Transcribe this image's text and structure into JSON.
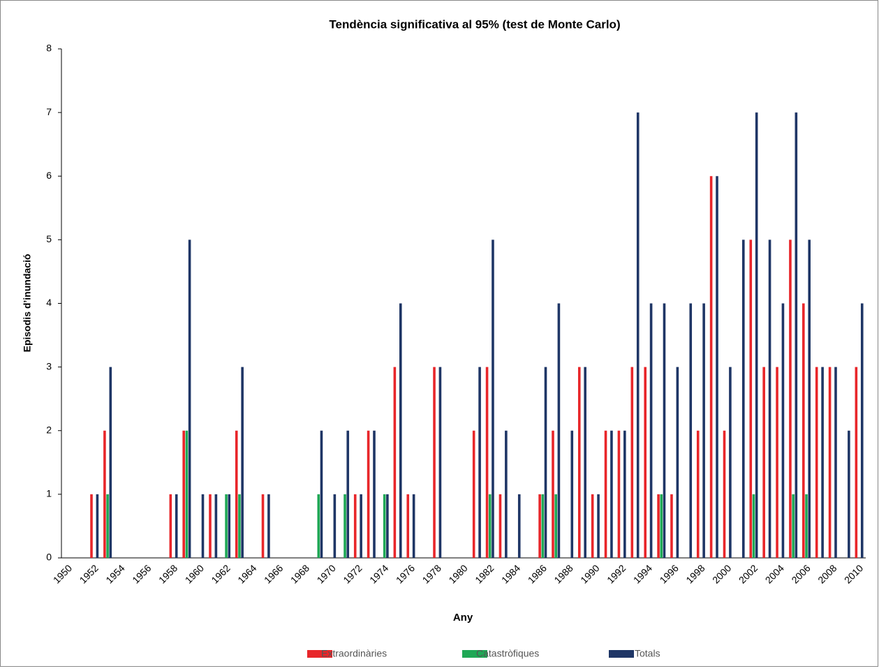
{
  "chart_data": {
    "type": "bar",
    "title": "Tendència significativa al 95% (test de Monte Carlo)",
    "x_label": "Any",
    "y_label": "Episodis d’inundació",
    "categories": [
      "1950",
      null,
      "1952",
      null,
      "1954",
      null,
      "1956",
      null,
      "1958",
      null,
      "1960",
      null,
      "1962",
      null,
      "1964",
      null,
      "1966",
      null,
      "1968",
      null,
      "1970",
      null,
      "1972",
      null,
      "1974",
      null,
      "1976",
      null,
      "1978",
      null,
      "1980",
      null,
      "1982",
      null,
      "1984",
      null,
      "1986",
      null,
      "1988",
      null,
      "1990",
      null,
      "1992",
      null,
      "1994",
      null,
      "1996",
      null,
      "1998",
      null,
      "2000",
      null,
      "2002",
      null,
      "2004",
      null,
      "2006",
      null,
      "2008",
      null,
      "2010"
    ],
    "series": [
      {
        "name": "Extraordinàries",
        "color": "#e8262a",
        "values": [
          0,
          0,
          1,
          2,
          0,
          0,
          0,
          0,
          1,
          2,
          0,
          1,
          0,
          2,
          0,
          1,
          0,
          0,
          0,
          0,
          0,
          0,
          1,
          2,
          0,
          3,
          1,
          0,
          3,
          0,
          0,
          2,
          3,
          1,
          0,
          0,
          1,
          2,
          0,
          3,
          1,
          2,
          2,
          3,
          3,
          1,
          1,
          0,
          2,
          6,
          2,
          0,
          5,
          3,
          3,
          5,
          4,
          3,
          3,
          0,
          3
        ]
      },
      {
        "name": "Catastròfiques",
        "color": "#1fa855",
        "values": [
          0,
          0,
          0,
          1,
          0,
          0,
          0,
          0,
          0,
          2,
          0,
          0,
          1,
          1,
          0,
          0,
          0,
          0,
          0,
          1,
          0,
          1,
          0,
          0,
          1,
          0,
          0,
          0,
          0,
          0,
          0,
          0,
          1,
          0,
          0,
          0,
          1,
          1,
          0,
          0,
          0,
          0,
          0,
          0,
          0,
          1,
          0,
          0,
          0,
          0,
          0,
          0,
          1,
          0,
          0,
          1,
          1,
          0,
          0,
          0,
          0
        ]
      },
      {
        "name": "Totals",
        "color": "#1f3666",
        "values": [
          0,
          0,
          1,
          3,
          0,
          0,
          0,
          0,
          1,
          5,
          1,
          1,
          1,
          3,
          0,
          1,
          0,
          0,
          0,
          2,
          1,
          2,
          1,
          2,
          1,
          4,
          1,
          0,
          3,
          0,
          0,
          3,
          5,
          2,
          1,
          0,
          3,
          4,
          2,
          3,
          1,
          2,
          2,
          7,
          4,
          4,
          3,
          4,
          4,
          6,
          3,
          5,
          7,
          5,
          4,
          7,
          5,
          3,
          3,
          2,
          4
        ]
      }
    ],
    "ylim": [
      0,
      8
    ],
    "yticks": [
      0,
      1,
      2,
      3,
      4,
      5,
      6,
      7,
      8
    ],
    "grid": false,
    "legend": "bottom"
  }
}
